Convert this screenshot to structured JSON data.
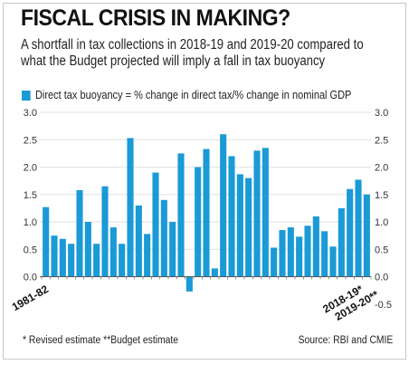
{
  "header": {
    "title": "FISCAL CRISIS IN MAKING?",
    "subtitle": "A shortfall in tax collections in 2018-19 and 2019-20 compared to what the Budget projected will imply a fall in tax buoyancy"
  },
  "colors": {
    "bar": "#1a9ad6",
    "grid": "#e2e2e2",
    "axis": "#555555"
  },
  "chart_data": {
    "type": "bar",
    "title": "FISCAL CRISIS IN MAKING?",
    "series": [
      {
        "name": "Direct tax buoyancy = % change in direct tax/% change in nominal GDP",
        "values": [
          1.27,
          0.75,
          0.69,
          0.6,
          1.58,
          1.0,
          0.6,
          1.65,
          0.9,
          0.6,
          2.53,
          1.3,
          0.78,
          1.9,
          1.4,
          1.0,
          2.25,
          -0.27,
          2.0,
          2.33,
          0.15,
          2.6,
          2.2,
          1.87,
          1.8,
          2.3,
          2.35,
          0.53,
          0.85,
          0.9,
          0.73,
          0.93,
          1.1,
          0.83,
          0.55,
          1.25,
          1.6,
          1.77,
          1.5
        ]
      }
    ],
    "x_labels": {
      "first": "1981-82",
      "last_prev": "2018-19*",
      "last": "2019-20**"
    },
    "yticks_left": [
      "3.0",
      "2.5",
      "2.0",
      "1.5",
      "1.0",
      "0.5",
      "0.0"
    ],
    "yticks_right": [
      "3.0",
      "2.5",
      "2.0",
      "1.5",
      "1.0",
      "0.5",
      "0.0",
      "-0.5"
    ],
    "ylim": [
      -0.5,
      3.0
    ],
    "grid": true,
    "legend": "top-left"
  },
  "footer": {
    "note": "* Revised estimate  **Budget estimate",
    "source": "Source: RBI and CMIE"
  }
}
